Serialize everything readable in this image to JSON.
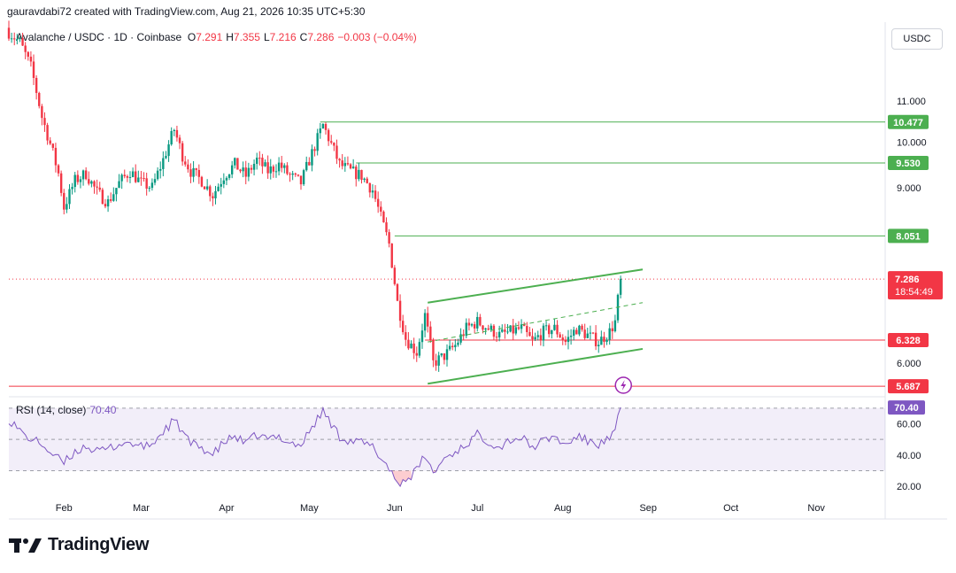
{
  "header": {
    "attribution": "gauravdabi72 created with TradingView.com, Aug 21, 2026 10:35 UTC+5:30"
  },
  "symbol": {
    "title": "Avalanche / USDC · 1D · Coinbase",
    "open_label": "O",
    "open": "7.291",
    "high_label": "H",
    "high": "7.355",
    "low_label": "L",
    "low": "7.216",
    "close_label": "C",
    "close": "7.286",
    "change": "−0.003 (−0.04%)"
  },
  "currency_button": "USDC",
  "rsi": {
    "title": "RSI (14, close)",
    "value": "70.40"
  },
  "logo": {
    "text": "TradingView"
  },
  "colors": {
    "up": "#089981",
    "down": "#f23645",
    "green_line": "#4caf50",
    "red_line": "#f23645",
    "rsi": "#7e57c2"
  },
  "chart_data": {
    "type": "candlestick",
    "ylim": [
      5.55,
      13.2
    ],
    "y_scale": "log",
    "price_ticks": [
      "11.000",
      "10.000",
      "9.000",
      "6.000"
    ],
    "time_labels": [
      "Feb",
      "Mar",
      "Apr",
      "May",
      "Jun",
      "Jul",
      "Aug",
      "Sep",
      "Oct",
      "Nov"
    ],
    "time_label_days": [
      32,
      60,
      91,
      121,
      152,
      182,
      213,
      244,
      274,
      305
    ],
    "x_range_days": [
      12,
      330
    ],
    "horizontal_levels": [
      {
        "value": 10.477,
        "label": "10.477",
        "color": "green",
        "start_day": 125
      },
      {
        "value": 9.53,
        "label": "9.530",
        "color": "green",
        "start_day": 138
      },
      {
        "value": 8.051,
        "label": "8.051",
        "color": "green",
        "start_day": 152
      },
      {
        "value": 6.328,
        "label": "6.328",
        "color": "red",
        "start_day": 163
      },
      {
        "value": 5.687,
        "label": "5.687",
        "color": "red",
        "start_day": 0
      }
    ],
    "current_price": {
      "value": 7.286,
      "label": "7.286",
      "countdown": "18:54:49"
    },
    "channel": {
      "upper": [
        [
          164,
          6.9
        ],
        [
          242,
          7.45
        ]
      ],
      "middle": [
        [
          164,
          6.3
        ],
        [
          242,
          6.9
        ]
      ],
      "lower": [
        [
          164,
          5.72
        ],
        [
          242,
          6.2
        ]
      ]
    },
    "key_closes": [
      [
        12,
        12.9
      ],
      [
        16,
        12.6
      ],
      [
        20,
        11.9
      ],
      [
        24,
        10.6
      ],
      [
        28,
        9.75
      ],
      [
        30,
        9.3
      ],
      [
        32,
        8.6
      ],
      [
        36,
        9.15
      ],
      [
        40,
        9.3
      ],
      [
        44,
        8.9
      ],
      [
        48,
        8.7
      ],
      [
        52,
        9.1
      ],
      [
        56,
        9.35
      ],
      [
        60,
        9.1
      ],
      [
        64,
        9.0
      ],
      [
        68,
        9.6
      ],
      [
        72,
        10.3
      ],
      [
        75,
        9.7
      ],
      [
        78,
        9.35
      ],
      [
        82,
        9.15
      ],
      [
        86,
        8.85
      ],
      [
        90,
        9.25
      ],
      [
        94,
        9.5
      ],
      [
        98,
        9.25
      ],
      [
        102,
        9.6
      ],
      [
        106,
        9.35
      ],
      [
        110,
        9.5
      ],
      [
        114,
        9.25
      ],
      [
        118,
        9.1
      ],
      [
        122,
        9.75
      ],
      [
        126,
        10.4
      ],
      [
        129,
        9.95
      ],
      [
        132,
        9.5
      ],
      [
        136,
        9.35
      ],
      [
        140,
        9.25
      ],
      [
        144,
        8.95
      ],
      [
        147,
        8.4
      ],
      [
        150,
        7.9
      ],
      [
        153,
        6.9
      ],
      [
        156,
        6.35
      ],
      [
        160,
        6.15
      ],
      [
        163,
        6.7
      ],
      [
        166,
        6.0
      ],
      [
        170,
        6.1
      ],
      [
        174,
        6.25
      ],
      [
        178,
        6.5
      ],
      [
        182,
        6.6
      ],
      [
        186,
        6.5
      ],
      [
        190,
        6.4
      ],
      [
        194,
        6.45
      ],
      [
        198,
        6.5
      ],
      [
        202,
        6.3
      ],
      [
        206,
        6.45
      ],
      [
        210,
        6.5
      ],
      [
        214,
        6.3
      ],
      [
        218,
        6.5
      ],
      [
        222,
        6.4
      ],
      [
        226,
        6.3
      ],
      [
        230,
        6.45
      ],
      [
        232,
        6.6
      ],
      [
        234,
        7.29
      ]
    ],
    "rsi_ylim": [
      15,
      75
    ],
    "rsi_ticks": [
      "60.00",
      "40.00",
      "20.00"
    ],
    "rsi_bands": [
      70,
      50,
      30
    ],
    "rsi_points": [
      [
        12,
        63
      ],
      [
        18,
        52
      ],
      [
        24,
        47
      ],
      [
        28,
        40
      ],
      [
        32,
        35
      ],
      [
        36,
        42
      ],
      [
        40,
        46
      ],
      [
        44,
        42
      ],
      [
        48,
        44
      ],
      [
        52,
        47
      ],
      [
        56,
        48
      ],
      [
        60,
        45
      ],
      [
        64,
        47
      ],
      [
        68,
        55
      ],
      [
        72,
        62
      ],
      [
        75,
        55
      ],
      [
        78,
        47
      ],
      [
        82,
        45
      ],
      [
        86,
        40
      ],
      [
        90,
        48
      ],
      [
        94,
        52
      ],
      [
        98,
        47
      ],
      [
        102,
        53
      ],
      [
        106,
        50
      ],
      [
        110,
        52
      ],
      [
        114,
        48
      ],
      [
        118,
        46
      ],
      [
        122,
        58
      ],
      [
        126,
        68
      ],
      [
        129,
        60
      ],
      [
        132,
        52
      ],
      [
        136,
        49
      ],
      [
        140,
        48
      ],
      [
        144,
        45
      ],
      [
        147,
        38
      ],
      [
        150,
        32
      ],
      [
        153,
        22
      ],
      [
        156,
        24
      ],
      [
        160,
        30
      ],
      [
        163,
        40
      ],
      [
        166,
        28
      ],
      [
        170,
        38
      ],
      [
        174,
        42
      ],
      [
        178,
        47
      ],
      [
        182,
        53
      ],
      [
        186,
        49
      ],
      [
        190,
        45
      ],
      [
        194,
        50
      ],
      [
        198,
        51
      ],
      [
        202,
        45
      ],
      [
        206,
        49
      ],
      [
        210,
        52
      ],
      [
        214,
        46
      ],
      [
        218,
        52
      ],
      [
        222,
        49
      ],
      [
        226,
        47
      ],
      [
        230,
        50
      ],
      [
        232,
        55
      ],
      [
        234,
        70.4
      ]
    ]
  }
}
